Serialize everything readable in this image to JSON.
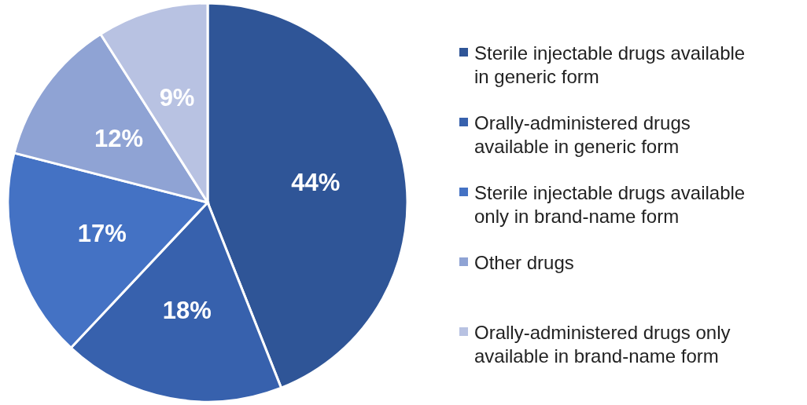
{
  "chart_data": {
    "type": "pie",
    "categories": [
      "Sterile injectable drugs available in generic form",
      "Orally-administered drugs available in generic form",
      "Sterile injectable drugs available only in brand-name form",
      "Other drugs",
      "Orally-administered drugs only available in brand-name form"
    ],
    "values": [
      44,
      18,
      17,
      12,
      9
    ],
    "value_labels": [
      "44%",
      "18%",
      "17%",
      "12%",
      "9%"
    ],
    "colors": [
      "#2f5597",
      "#3761ad",
      "#4472c4",
      "#8fa3d4",
      "#b8c2e2"
    ],
    "legend": "right"
  }
}
